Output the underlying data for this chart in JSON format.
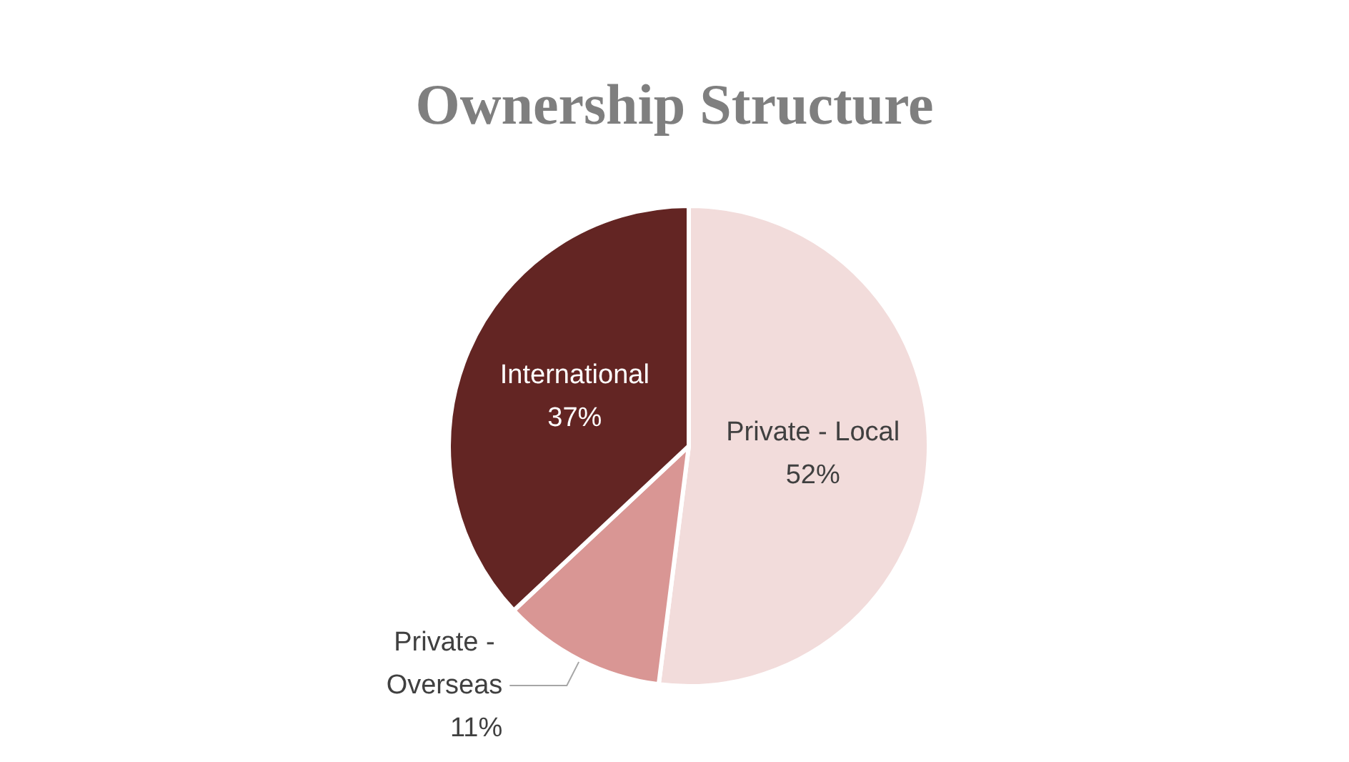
{
  "chart_data": {
    "type": "pie",
    "title": "Ownership Structure",
    "categories": [
      "Private - Local",
      "Private - Overseas",
      "International"
    ],
    "values": [
      52,
      11,
      37
    ],
    "value_labels": [
      "52%",
      "11%",
      "37%"
    ],
    "colors": [
      "#f2dcdb",
      "#d99694",
      "#632523"
    ],
    "data_labels": true,
    "legend": false
  }
}
